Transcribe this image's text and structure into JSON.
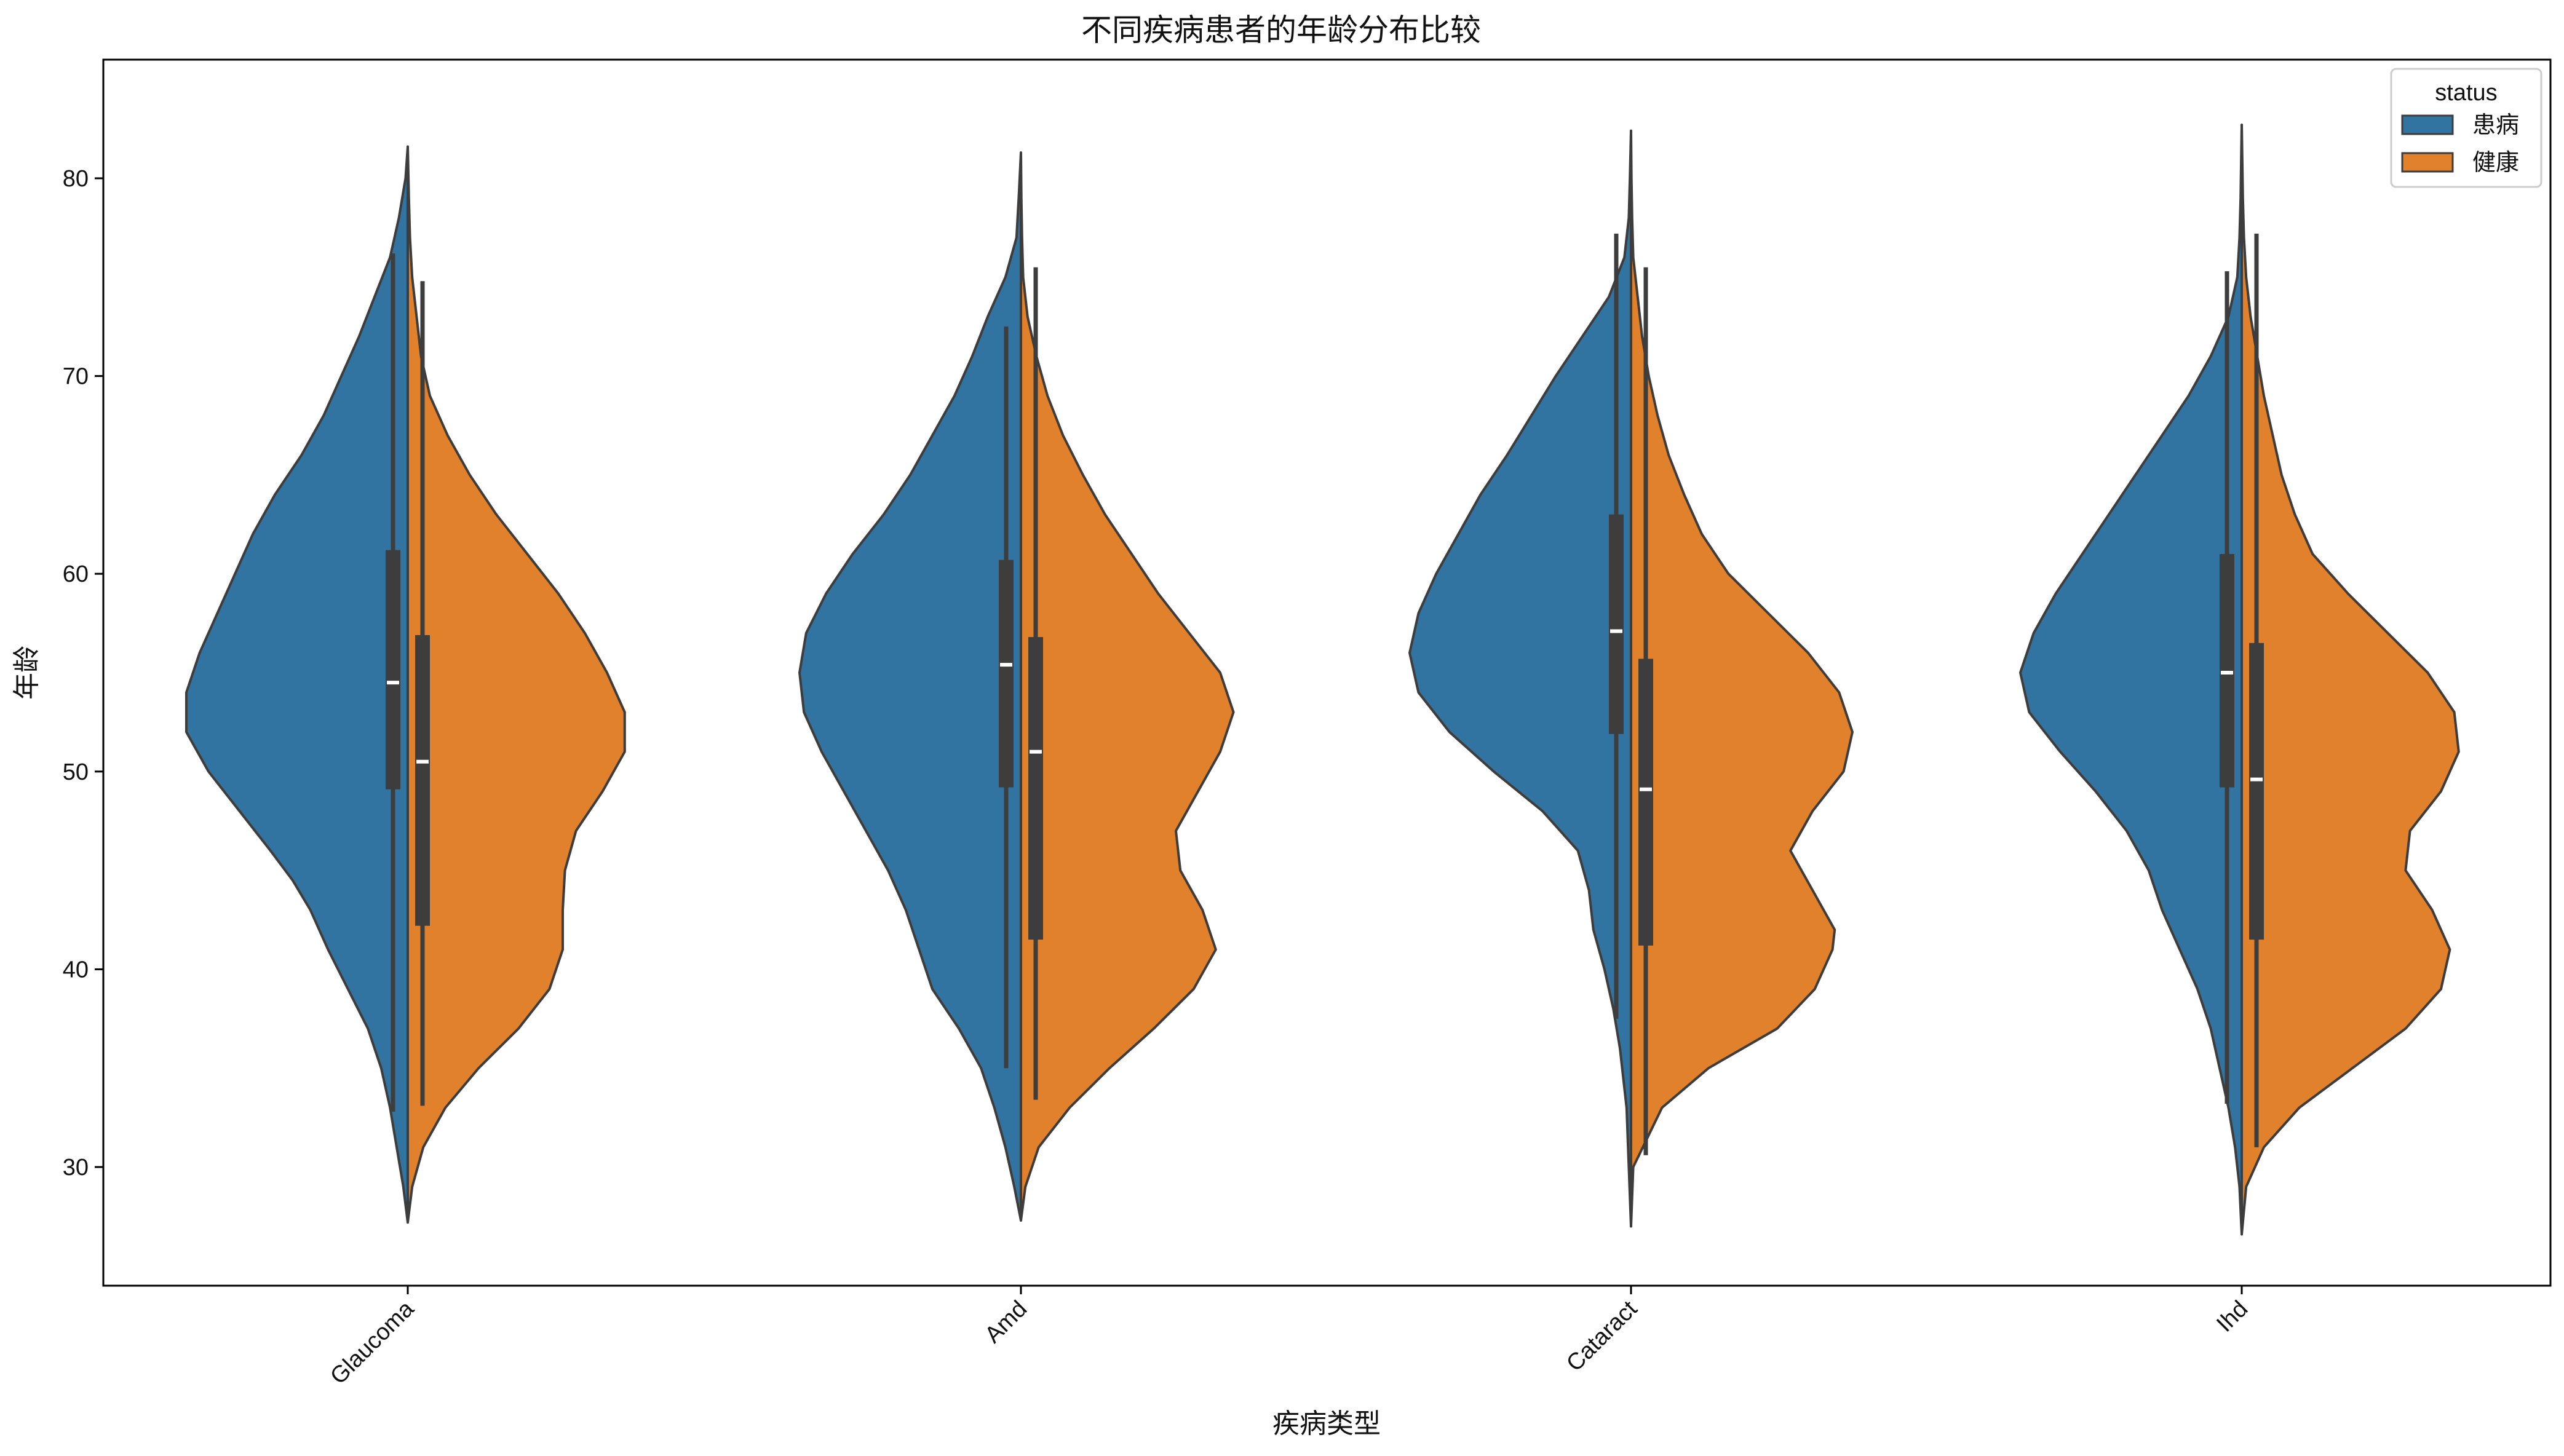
{
  "chart_data": {
    "type": "violin",
    "title": "不同疾病患者的年龄分布比较",
    "xlabel": "疾病类型",
    "ylabel": "年龄",
    "ylim": [
      24,
      86
    ],
    "yticks": [
      30,
      40,
      50,
      60,
      70,
      80
    ],
    "categories": [
      "Glaucoma",
      "Amd",
      "Cataract",
      "Ihd"
    ],
    "split": true,
    "legend": {
      "title": "status",
      "position": "top-right",
      "entries": [
        {
          "label": "患病",
          "color": "#3274a1"
        },
        {
          "label": "健康",
          "color": "#e1812c"
        }
      ]
    },
    "series": [
      {
        "name": "患病",
        "color": "#3274a1",
        "side": "left",
        "stats": [
          {
            "category": "Glaucoma",
            "min": 32.8,
            "q1": 49.1,
            "median": 54.5,
            "q3": 61.2,
            "max": 76.2
          },
          {
            "category": "Amd",
            "min": 35.0,
            "q1": 49.2,
            "median": 55.4,
            "q3": 60.7,
            "max": 72.5
          },
          {
            "category": "Cataract",
            "min": 37.5,
            "q1": 51.9,
            "median": 57.1,
            "q3": 63.0,
            "max": 77.2
          },
          {
            "category": "Ihd",
            "min": 33.2,
            "q1": 49.2,
            "median": 55.0,
            "q3": 61.0,
            "max": 75.3
          }
        ],
        "density": [
          {
            "category": "Glaucoma",
            "y": [
              27.2,
              29,
              31,
              33,
              35,
              37,
              39,
              41,
              43,
              44.5,
              46,
              48,
              50,
              52,
              54,
              56,
              58,
              60,
              62,
              64,
              66,
              68,
              70,
              72,
              74,
              76,
              78,
              80,
              81.6
            ],
            "w": [
              0.0,
              0.02,
              0.05,
              0.08,
              0.12,
              0.18,
              0.27,
              0.36,
              0.44,
              0.52,
              0.62,
              0.76,
              0.9,
              1.0,
              1.0,
              0.94,
              0.86,
              0.78,
              0.7,
              0.6,
              0.48,
              0.38,
              0.3,
              0.22,
              0.15,
              0.08,
              0.04,
              0.01,
              0.0
            ]
          },
          {
            "category": "Amd",
            "y": [
              27.3,
              29,
              31,
              33,
              35,
              37,
              39,
              41,
              43,
              45,
              47,
              49,
              51,
              53,
              55,
              57,
              59,
              61,
              63,
              65,
              67,
              69,
              71,
              73,
              75,
              77,
              79,
              81.3
            ],
            "w": [
              0.0,
              0.03,
              0.07,
              0.12,
              0.18,
              0.28,
              0.4,
              0.46,
              0.52,
              0.6,
              0.7,
              0.8,
              0.9,
              0.98,
              1.0,
              0.97,
              0.88,
              0.76,
              0.62,
              0.5,
              0.4,
              0.3,
              0.22,
              0.15,
              0.07,
              0.02,
              0.01,
              0.0
            ]
          },
          {
            "category": "Cataract",
            "y": [
              27.0,
              30,
              33,
              36,
              38,
              40,
              42,
              44,
              46,
              48,
              50,
              52,
              54,
              56,
              58,
              60,
              62,
              64,
              66,
              68,
              70,
              72,
              74,
              76,
              78,
              80,
              82.4
            ],
            "w": [
              0.0,
              0.01,
              0.02,
              0.05,
              0.08,
              0.12,
              0.17,
              0.19,
              0.24,
              0.4,
              0.62,
              0.82,
              0.96,
              1.0,
              0.96,
              0.88,
              0.78,
              0.68,
              0.56,
              0.45,
              0.34,
              0.22,
              0.1,
              0.03,
              0.01,
              0.005,
              0.0
            ]
          },
          {
            "category": "Ihd",
            "y": [
              26.6,
              29,
              31,
              33,
              35,
              37,
              39,
              41,
              43,
              45,
              47,
              49,
              51,
              53,
              55,
              57,
              59,
              61,
              63,
              65,
              67,
              69,
              71,
              73,
              75,
              77,
              79,
              82.7
            ],
            "w": [
              0.0,
              0.01,
              0.03,
              0.06,
              0.1,
              0.14,
              0.2,
              0.28,
              0.36,
              0.42,
              0.52,
              0.66,
              0.82,
              0.96,
              1.0,
              0.94,
              0.84,
              0.72,
              0.6,
              0.48,
              0.36,
              0.24,
              0.14,
              0.06,
              0.02,
              0.01,
              0.005,
              0.0
            ]
          }
        ]
      },
      {
        "name": "健康",
        "color": "#e1812c",
        "side": "right",
        "stats": [
          {
            "category": "Glaucoma",
            "min": 33.1,
            "q1": 42.2,
            "median": 50.5,
            "q3": 56.9,
            "max": 74.8
          },
          {
            "category": "Amd",
            "min": 33.4,
            "q1": 41.5,
            "median": 51.0,
            "q3": 56.8,
            "max": 75.5
          },
          {
            "category": "Cataract",
            "min": 30.6,
            "q1": 41.2,
            "median": 49.1,
            "q3": 55.7,
            "max": 75.5
          },
          {
            "category": "Ihd",
            "min": 31.0,
            "q1": 41.5,
            "median": 49.6,
            "q3": 56.5,
            "max": 77.2
          }
        ],
        "density": [
          {
            "category": "Glaucoma",
            "y": [
              27.2,
              29,
              31,
              33,
              35,
              37,
              39,
              41,
              43,
              45,
              47,
              49,
              51,
              53,
              55,
              57,
              59,
              61,
              63,
              65,
              67,
              69,
              71,
              73,
              75,
              77,
              79,
              81.6
            ],
            "w": [
              0.0,
              0.02,
              0.07,
              0.17,
              0.32,
              0.5,
              0.64,
              0.7,
              0.7,
              0.71,
              0.76,
              0.88,
              0.98,
              0.98,
              0.9,
              0.8,
              0.68,
              0.54,
              0.4,
              0.28,
              0.18,
              0.1,
              0.06,
              0.04,
              0.02,
              0.01,
              0.005,
              0.0
            ]
          },
          {
            "category": "Amd",
            "y": [
              27.3,
              29,
              31,
              33,
              35,
              37,
              39,
              41,
              43,
              45,
              47,
              49,
              51,
              53,
              55,
              57,
              59,
              61,
              63,
              65,
              67,
              69,
              71,
              73,
              75,
              77,
              79,
              81.3
            ],
            "w": [
              0.0,
              0.02,
              0.08,
              0.22,
              0.4,
              0.6,
              0.78,
              0.88,
              0.82,
              0.72,
              0.7,
              0.8,
              0.9,
              0.96,
              0.9,
              0.76,
              0.62,
              0.5,
              0.38,
              0.28,
              0.19,
              0.12,
              0.07,
              0.03,
              0.01,
              0.005,
              0.002,
              0.0
            ]
          },
          {
            "category": "Cataract",
            "y": [
              27.0,
              30,
              33,
              35,
              37,
              39,
              41,
              42,
              44,
              46,
              48,
              50,
              52,
              54,
              56,
              58,
              60,
              62,
              64,
              66,
              68,
              70,
              72,
              74,
              76,
              78,
              80,
              82.4
            ],
            "w": [
              0.0,
              0.01,
              0.14,
              0.35,
              0.66,
              0.83,
              0.91,
              0.92,
              0.82,
              0.72,
              0.82,
              0.96,
              1.0,
              0.94,
              0.8,
              0.62,
              0.44,
              0.32,
              0.24,
              0.17,
              0.12,
              0.08,
              0.05,
              0.03,
              0.01,
              0.005,
              0.002,
              0.0
            ]
          },
          {
            "category": "Ihd",
            "y": [
              26.6,
              29,
              31,
              33,
              35,
              37,
              39,
              41,
              43,
              45,
              47,
              49,
              51,
              53,
              55,
              57,
              59,
              61,
              63,
              65,
              67,
              69,
              71,
              73,
              75,
              77,
              79,
              82.7
            ],
            "w": [
              0.0,
              0.02,
              0.1,
              0.26,
              0.5,
              0.74,
              0.9,
              0.94,
              0.86,
              0.74,
              0.76,
              0.9,
              0.98,
              0.96,
              0.84,
              0.66,
              0.48,
              0.32,
              0.24,
              0.18,
              0.14,
              0.1,
              0.07,
              0.04,
              0.02,
              0.01,
              0.005,
              0.0
            ]
          }
        ]
      }
    ]
  }
}
